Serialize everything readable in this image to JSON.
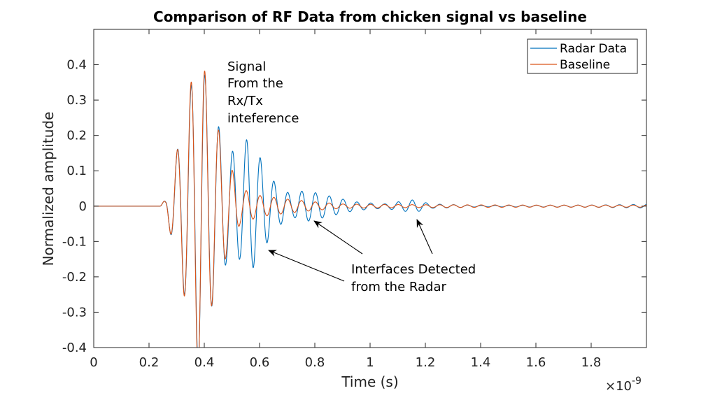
{
  "chart_data": {
    "type": "line",
    "title": "Comparison of RF Data from chicken signal vs baseline",
    "xlabel": "Time (s)",
    "ylabel": "Normalized amplitude",
    "xlim": [
      0,
      2e-09
    ],
    "ylim": [
      -0.4,
      0.5
    ],
    "x_exponent_base": "×10",
    "x_exponent_power": "-9",
    "x_ticks": [
      0,
      0.2,
      0.4,
      0.6,
      0.8,
      1,
      1.2,
      1.4,
      1.6,
      1.8
    ],
    "x_tick_labels": [
      "0",
      "0.2",
      "0.4",
      "0.6",
      "0.8",
      "1",
      "1.2",
      "1.4",
      "1.6",
      "1.8"
    ],
    "y_ticks": [
      -0.4,
      -0.3,
      -0.2,
      -0.1,
      0,
      0.1,
      0.2,
      0.3,
      0.4
    ],
    "y_tick_labels": [
      "-0.4",
      "-0.3",
      "-0.2",
      "-0.1",
      "0",
      "0.1",
      "0.2",
      "0.3",
      "0.4"
    ],
    "grid": false,
    "legend_position": "top-right",
    "series": [
      {
        "name": "Radar Data",
        "color": "#0072BD",
        "envelope": [
          {
            "t": 0.0,
            "a": 0.0
          },
          {
            "t": 0.24,
            "a": 0.0
          },
          {
            "t": 0.26,
            "a": 0.02
          },
          {
            "t": 0.3,
            "a": 0.15
          },
          {
            "t": 0.35,
            "a": 0.33
          },
          {
            "t": 0.38,
            "a": 0.46
          },
          {
            "t": 0.42,
            "a": 0.3
          },
          {
            "t": 0.48,
            "a": 0.16
          },
          {
            "t": 0.53,
            "a": 0.15
          },
          {
            "t": 0.56,
            "a": 0.2
          },
          {
            "t": 0.6,
            "a": 0.14
          },
          {
            "t": 0.66,
            "a": 0.06
          },
          {
            "t": 0.72,
            "a": 0.03
          },
          {
            "t": 0.76,
            "a": 0.045
          },
          {
            "t": 0.82,
            "a": 0.035
          },
          {
            "t": 0.9,
            "a": 0.02
          },
          {
            "t": 0.95,
            "a": 0.012
          },
          {
            "t": 1.05,
            "a": 0.006
          },
          {
            "t": 1.1,
            "a": 0.012
          },
          {
            "t": 1.16,
            "a": 0.018
          },
          {
            "t": 1.22,
            "a": 0.006
          },
          {
            "t": 1.4,
            "a": 0.002
          },
          {
            "t": 1.8,
            "a": 0.003
          },
          {
            "t": 2.0,
            "a": 0.005
          }
        ]
      },
      {
        "name": "Baseline",
        "color": "#D95319",
        "envelope": [
          {
            "t": 0.0,
            "a": 0.0
          },
          {
            "t": 0.24,
            "a": 0.0
          },
          {
            "t": 0.26,
            "a": 0.02
          },
          {
            "t": 0.3,
            "a": 0.15
          },
          {
            "t": 0.35,
            "a": 0.34
          },
          {
            "t": 0.38,
            "a": 0.48
          },
          {
            "t": 0.42,
            "a": 0.3
          },
          {
            "t": 0.48,
            "a": 0.14
          },
          {
            "t": 0.53,
            "a": 0.05
          },
          {
            "t": 0.6,
            "a": 0.03
          },
          {
            "t": 0.7,
            "a": 0.02
          },
          {
            "t": 0.8,
            "a": 0.012
          },
          {
            "t": 0.9,
            "a": 0.006
          },
          {
            "t": 1.0,
            "a": 0.005
          },
          {
            "t": 1.2,
            "a": 0.004
          },
          {
            "t": 1.6,
            "a": 0.003
          },
          {
            "t": 2.0,
            "a": 0.003
          }
        ]
      }
    ],
    "carrier_frequency_ghz": 20,
    "annotations": [
      {
        "lines": [
          "Signal",
          "From the",
          "Rx/Tx",
          "inteference"
        ]
      },
      {
        "lines": [
          "Interfaces Detected",
          "from the Radar"
        ],
        "arrow_targets": [
          [
            0.63,
            -0.125
          ],
          [
            0.79,
            -0.04
          ],
          [
            1.16,
            -0.04
          ]
        ]
      }
    ]
  }
}
